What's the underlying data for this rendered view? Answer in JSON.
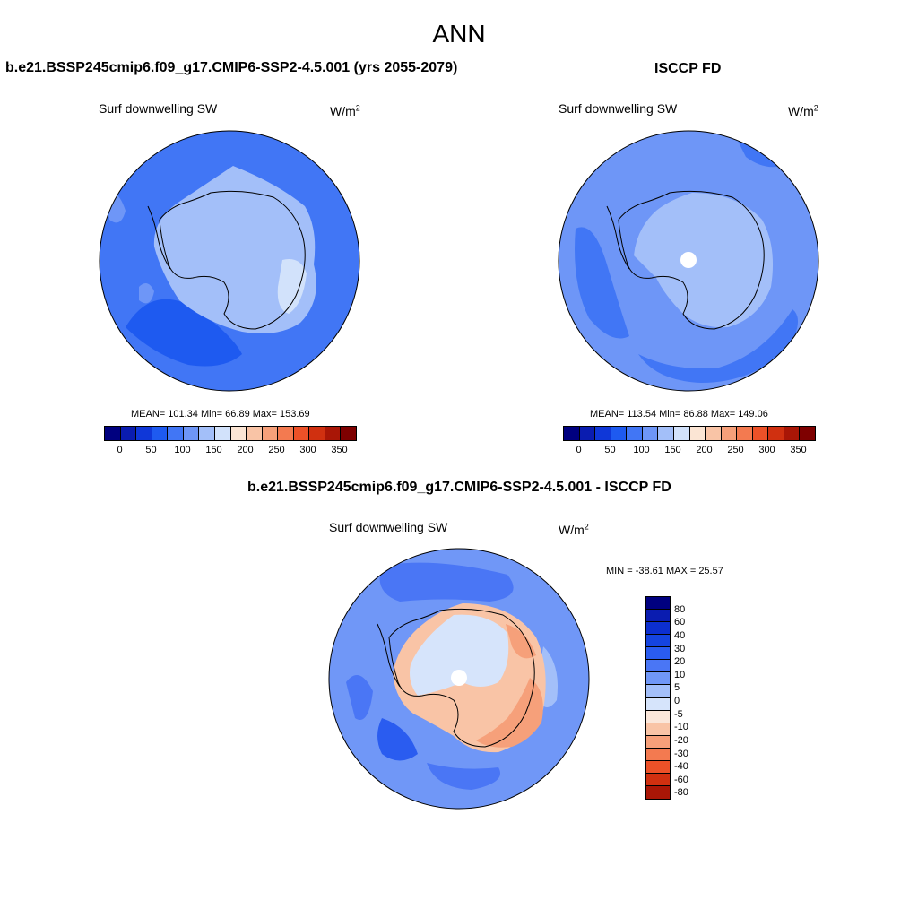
{
  "title": "ANN",
  "panels": {
    "model": {
      "title": "b.e21.BSSP245cmip6.f09_g17.CMIP6-SSP2-4.5.001 (yrs 2055-2079)",
      "var_label": "Surf downwelling SW",
      "units": "W/m",
      "units_exp": "2",
      "stats": "MEAN= 101.34  Min=  66.89  Max= 153.69"
    },
    "obs": {
      "title": "ISCCP FD",
      "var_label": "Surf downwelling SW",
      "units": "W/m",
      "units_exp": "2",
      "stats": "MEAN= 113.54  Min=  86.88  Max= 149.06"
    },
    "diff": {
      "title": "b.e21.BSSP245cmip6.f09_g17.CMIP6-SSP2-4.5.001 - ISCCP FD",
      "var_label": "Surf downwelling SW",
      "units": "W/m",
      "units_exp": "2",
      "stats": "MIN = -38.61 MAX =  25.57"
    }
  },
  "colorbars": {
    "abs_colors": [
      "#00007f",
      "#0a1cb0",
      "#0f37d8",
      "#1e5af0",
      "#4176f5",
      "#6e96f7",
      "#a3bff9",
      "#d2e2fb",
      "#fbe5d4",
      "#f9c4a6",
      "#f6a07a",
      "#f37a50",
      "#ec5128",
      "#d03010",
      "#a91606",
      "#7e0000"
    ],
    "abs_ticks": [
      "0",
      "50",
      "100",
      "150",
      "200",
      "250",
      "300",
      "350"
    ],
    "diff_colors": [
      "#00007f",
      "#0a1cb0",
      "#0c2fd0",
      "#1544e0",
      "#2a5cf0",
      "#4a76f5",
      "#7097f7",
      "#a3bff9",
      "#d6e4fb",
      "#fbe7da",
      "#f9c4a6",
      "#f6a07a",
      "#f37a50",
      "#ec5128",
      "#d03010",
      "#a91606"
    ],
    "diff_ticks": [
      "80",
      "60",
      "40",
      "30",
      "20",
      "10",
      "5",
      "0",
      "-5",
      "-10",
      "-20",
      "-30",
      "-40",
      "-60",
      "-80"
    ]
  }
}
